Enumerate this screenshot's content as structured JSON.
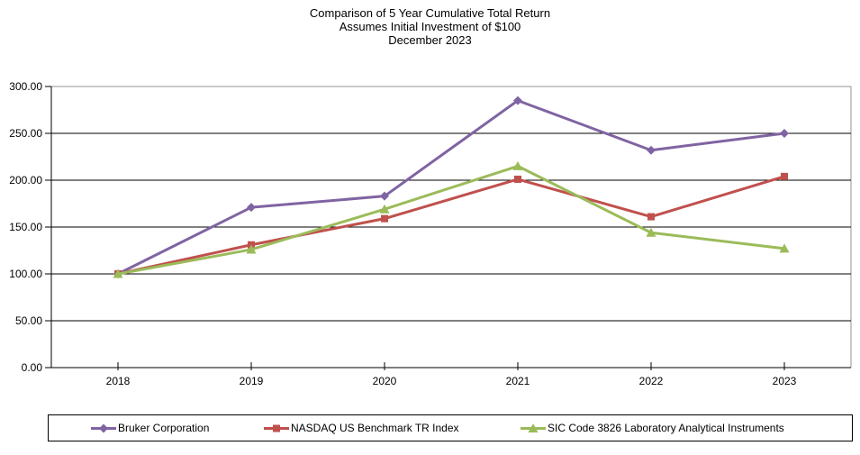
{
  "title": {
    "line1": "Comparison of 5 Year Cumulative Total Return",
    "line2": "Assumes Initial Investment of $100",
    "line3": "December 2023"
  },
  "chart_data": {
    "type": "line",
    "x": [
      "2018",
      "2019",
      "2020",
      "2021",
      "2022",
      "2023"
    ],
    "series": [
      {
        "name": "Bruker Corporation",
        "color": "#8064A2",
        "marker": "diamond",
        "values": [
          100,
          171,
          183,
          285,
          232,
          250
        ]
      },
      {
        "name": "NASDAQ US Benchmark TR Index",
        "color": "#C0504D",
        "marker": "square",
        "values": [
          100,
          131,
          159,
          201,
          161,
          204
        ]
      },
      {
        "name": "SIC Code 3826 Laboratory Analytical Instruments",
        "color": "#9BBB59",
        "marker": "triangle",
        "values": [
          100,
          126,
          169,
          215,
          144,
          127
        ]
      }
    ],
    "ylim": [
      0,
      300
    ],
    "ytick_values": [
      0,
      50,
      100,
      150,
      200,
      250,
      300
    ],
    "ytick_labels": [
      "0.00",
      "50.00",
      "100.00",
      "150.00",
      "200.00",
      "250.00",
      "300.00"
    ],
    "grid": "horizontal-black",
    "plot_border_color": "#969696",
    "axis_color": "#000000",
    "legend_position": "bottom"
  }
}
